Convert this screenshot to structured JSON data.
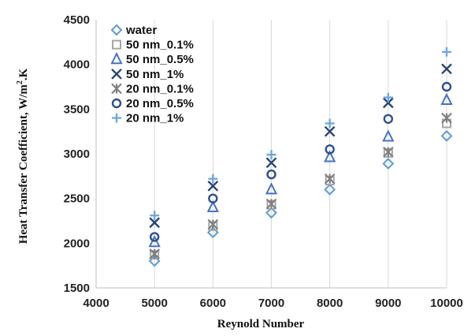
{
  "chart_data": {
    "type": "scatter",
    "title": "",
    "xlabel": "Reynold Number",
    "ylabel": "Heat Transfer Coefficient, W/m²·K",
    "ylabel_base": "Heat Transfer Coefficient, W/m",
    "ylabel_sup": "2",
    "ylabel_tail": ".K",
    "xlim": [
      4000,
      10000
    ],
    "ylim": [
      1500,
      4500
    ],
    "xticks": [
      "4000",
      "5000",
      "6000",
      "7000",
      "8000",
      "9000",
      "10000"
    ],
    "yticks": [
      "1500",
      "2000",
      "2500",
      "3000",
      "3500",
      "4000",
      "4500"
    ],
    "grid": "vertical",
    "legend_position": "top-left",
    "x": [
      5000,
      6000,
      7000,
      8000,
      9000,
      10000
    ],
    "series": [
      {
        "name": "water",
        "marker": "diamond",
        "color": "#5b9bd5",
        "values": [
          1800,
          2120,
          2340,
          2600,
          2890,
          3200
        ]
      },
      {
        "name": "50 nm_0.1%",
        "marker": "square",
        "color": "#a5a5a5",
        "values": [
          1870,
          2190,
          2430,
          2700,
          3010,
          3340
        ]
      },
      {
        "name": "50 nm_0.5%",
        "marker": "triangle",
        "color": "#4472c4",
        "values": [
          2010,
          2400,
          2600,
          2960,
          3190,
          3600
        ]
      },
      {
        "name": "50 nm_1%",
        "marker": "x",
        "color": "#264478",
        "values": [
          2230,
          2640,
          2900,
          3250,
          3570,
          3950
        ]
      },
      {
        "name": "20 nm_0.1%",
        "marker": "star",
        "color": "#7f7f7f",
        "values": [
          1880,
          2210,
          2440,
          2720,
          3020,
          3400
        ]
      },
      {
        "name": "20 nm_0.5%",
        "marker": "circle",
        "color": "#2e4f8f",
        "values": [
          2070,
          2500,
          2770,
          3050,
          3390,
          3750
        ]
      },
      {
        "name": "20 nm_1%",
        "marker": "plus",
        "color": "#6fa8dc",
        "values": [
          2310,
          2720,
          2990,
          3340,
          3630,
          4140
        ]
      }
    ]
  }
}
